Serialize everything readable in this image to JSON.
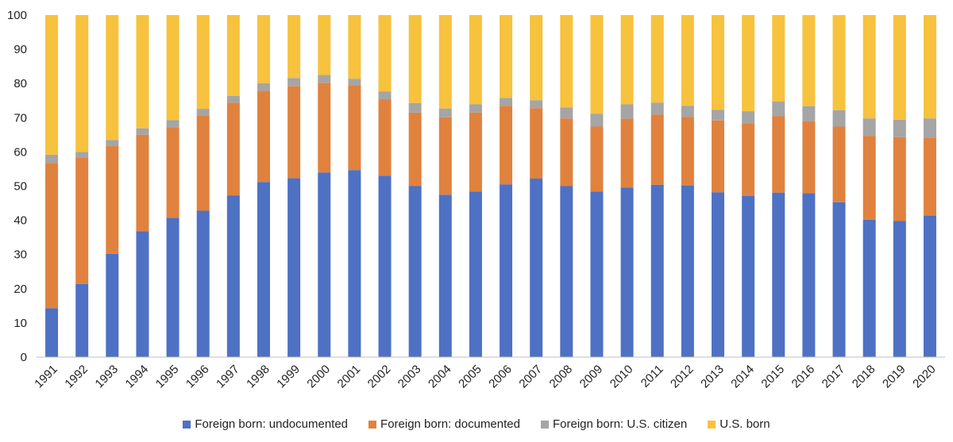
{
  "chart_data": {
    "type": "bar",
    "stacked": true,
    "categories": [
      "1991",
      "1992",
      "1993",
      "1994",
      "1995",
      "1996",
      "1997",
      "1998",
      "1999",
      "2000",
      "2001",
      "2002",
      "2003",
      "2004",
      "2005",
      "2006",
      "2007",
      "2008",
      "2009",
      "2010",
      "2011",
      "2012",
      "2013",
      "2014",
      "2015",
      "2016",
      "2017",
      "2018",
      "2019",
      "2020"
    ],
    "ylim": [
      0,
      100
    ],
    "yticks": [
      0,
      10,
      20,
      30,
      40,
      50,
      60,
      70,
      80,
      90,
      100
    ],
    "grid": false,
    "legend_position": "bottom",
    "series": [
      {
        "name": "Foreign born: undocumented",
        "color": "#4e71c4",
        "values": [
          14.3,
          21.4,
          30.2,
          36.8,
          40.7,
          42.8,
          47.3,
          51.2,
          52.3,
          54.0,
          54.7,
          53.0,
          50.0,
          47.5,
          48.4,
          50.5,
          52.2,
          50.0,
          48.4,
          49.6,
          50.4,
          50.2,
          48.2,
          47.1,
          48.1,
          47.9,
          45.3,
          40.2,
          39.8,
          41.3
        ]
      },
      {
        "name": "Foreign born: documented",
        "color": "#e0823e",
        "values": [
          42.5,
          37.0,
          31.5,
          28.2,
          26.5,
          27.9,
          27.1,
          26.7,
          26.9,
          26.2,
          24.8,
          22.4,
          21.5,
          22.6,
          23.1,
          23.0,
          20.6,
          19.8,
          19.0,
          20.1,
          20.5,
          20.0,
          21.0,
          21.3,
          22.4,
          21.1,
          22.1,
          24.5,
          24.5,
          22.9
        ]
      },
      {
        "name": "Foreign born: U.S. citizen",
        "color": "#a5a5a5",
        "values": [
          2.4,
          1.6,
          1.8,
          1.9,
          2.1,
          1.9,
          2.0,
          2.2,
          2.4,
          2.3,
          1.9,
          2.3,
          2.8,
          2.6,
          2.4,
          2.3,
          2.3,
          3.2,
          3.8,
          4.2,
          3.5,
          3.3,
          3.1,
          3.5,
          4.2,
          4.4,
          4.8,
          5.1,
          5.1,
          5.6
        ]
      },
      {
        "name": "U.S. born",
        "color": "#f7c23d",
        "values": [
          40.8,
          40.0,
          36.5,
          33.1,
          30.7,
          27.4,
          23.6,
          19.9,
          18.4,
          17.5,
          18.6,
          22.3,
          25.7,
          27.3,
          26.1,
          24.2,
          24.9,
          27.0,
          28.8,
          26.1,
          25.6,
          26.5,
          27.7,
          28.1,
          25.3,
          26.6,
          27.8,
          30.2,
          30.6,
          30.2
        ]
      }
    ]
  }
}
